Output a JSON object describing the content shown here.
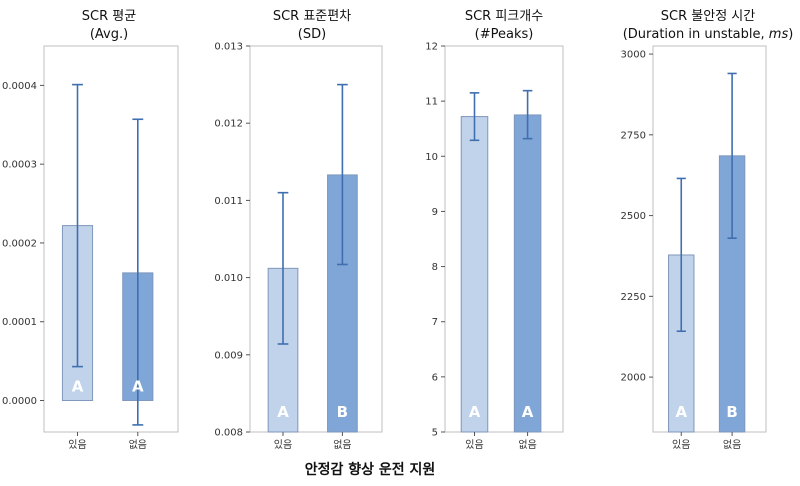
{
  "colors": {
    "bar_light": "#c0d3ea",
    "bar_dark": "#7fa6d6",
    "bar_stroke": "#7f97bb",
    "error": "#3f6fb0",
    "frame": "#bfbfbf",
    "letter": "#ffffff"
  },
  "xlabel": "안정감 향상 운전 지원",
  "chart_data": [
    {
      "type": "bar",
      "title": [
        "SCR 평균",
        "(Avg.)"
      ],
      "categories": [
        "있음",
        "없음"
      ],
      "values": [
        0.000222,
        0.000162
      ],
      "error_low": [
        4.3e-05,
        -3.1e-05
      ],
      "error_high": [
        0.000401,
        0.000357
      ],
      "group_letters": [
        "A",
        "A"
      ],
      "ylim": [
        -4e-05,
        0.00045
      ],
      "yticks": [
        0.0,
        0.0001,
        0.0002,
        0.0003,
        0.0004
      ],
      "ytick_labels": [
        "0.0000",
        "0.0001",
        "0.0002",
        "0.0003",
        "0.0004"
      ],
      "grid": false
    },
    {
      "type": "bar",
      "title": [
        "SCR 표준편차",
        "(SD)"
      ],
      "categories": [
        "있음",
        "없음"
      ],
      "values": [
        0.01012,
        0.01133
      ],
      "error_low": [
        0.00914,
        0.01017
      ],
      "error_high": [
        0.0111,
        0.0125
      ],
      "group_letters": [
        "A",
        "B"
      ],
      "ylim": [
        0.008,
        0.013
      ],
      "yticks": [
        0.008,
        0.009,
        0.01,
        0.011,
        0.012,
        0.013
      ],
      "ytick_labels": [
        "0.008",
        "0.009",
        "0.010",
        "0.011",
        "0.012",
        "0.013"
      ],
      "grid": false
    },
    {
      "type": "bar",
      "title": [
        "SCR 피크개수",
        "(#Peaks)"
      ],
      "categories": [
        "있음",
        "없음"
      ],
      "values": [
        10.72,
        10.75
      ],
      "error_low": [
        10.29,
        10.32
      ],
      "error_high": [
        11.15,
        11.19
      ],
      "group_letters": [
        "A",
        "A"
      ],
      "ylim": [
        5,
        12
      ],
      "yticks": [
        5,
        6,
        7,
        8,
        9,
        10,
        11,
        12
      ],
      "ytick_labels": [
        "5",
        "6",
        "7",
        "8",
        "9",
        "10",
        "11",
        "12"
      ],
      "grid": false
    },
    {
      "type": "bar",
      "title": [
        "SCR 불안정 시간",
        "(Duration in unstable, ms)"
      ],
      "categories": [
        "있음",
        "없음"
      ],
      "values": [
        2378,
        2685
      ],
      "error_low": [
        2142,
        2430
      ],
      "error_high": [
        2615,
        2940
      ],
      "group_letters": [
        "A",
        "B"
      ],
      "ylim": [
        1830,
        3025
      ],
      "yticks": [
        2000,
        2250,
        2500,
        2750,
        3000
      ],
      "ytick_labels": [
        "2000",
        "2250",
        "2500",
        "2750",
        "3000"
      ],
      "grid": false
    }
  ]
}
